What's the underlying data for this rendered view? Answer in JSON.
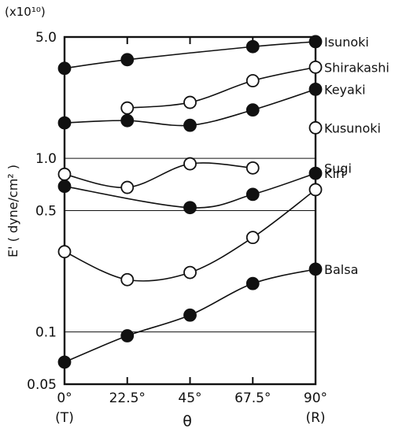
{
  "chart_data": {
    "type": "scatter",
    "title": "",
    "xlabel": "θ",
    "ylabel": "E' ( dyne/cm² )",
    "y_scale_note": "(x10¹⁰)",
    "y_scale": "log",
    "ylim": [
      0.05,
      5.0
    ],
    "y_ticks": [
      {
        "value": 5.0,
        "label": "5.0"
      },
      {
        "value": 1.0,
        "label": "1.0"
      },
      {
        "value": 0.5,
        "label": "0.5"
      },
      {
        "value": 0.1,
        "label": "0.1"
      },
      {
        "value": 0.05,
        "label": "0.05"
      }
    ],
    "x": [
      0,
      22.5,
      45,
      67.5,
      90
    ],
    "x_tick_labels": [
      "0°",
      "22.5°",
      "45°",
      "67.5°",
      "90°"
    ],
    "x_sub_labels": [
      {
        "x": 0,
        "label": "(T)"
      },
      {
        "x": 90,
        "label": "(R)"
      }
    ],
    "grid": "horizontal",
    "series": [
      {
        "name": "Isunoki",
        "marker": "filled",
        "values": [
          3.3,
          3.7,
          null,
          4.4,
          4.7
        ]
      },
      {
        "name": "Shirakashi",
        "marker": "open",
        "values": [
          null,
          1.95,
          2.1,
          2.8,
          3.35
        ]
      },
      {
        "name": "Keyaki",
        "marker": "filled",
        "values": [
          1.6,
          1.65,
          1.55,
          1.9,
          2.5
        ]
      },
      {
        "name": "Kusunoki",
        "marker": "open",
        "values": [
          null,
          null,
          null,
          null,
          1.5
        ]
      },
      {
        "name": "Sugi",
        "marker": "open",
        "values": [
          0.81,
          0.68,
          0.93,
          0.88,
          null
        ]
      },
      {
        "name": "Kiri",
        "marker": "filled",
        "values": [
          0.69,
          null,
          0.52,
          0.62,
          0.82
        ]
      },
      {
        "name": "",
        "marker": "open",
        "values": [
          0.29,
          0.2,
          0.22,
          0.35,
          0.66
        ]
      },
      {
        "name": "Balsa",
        "marker": "filled",
        "values": [
          0.067,
          0.095,
          0.125,
          0.19,
          0.23
        ]
      }
    ]
  }
}
